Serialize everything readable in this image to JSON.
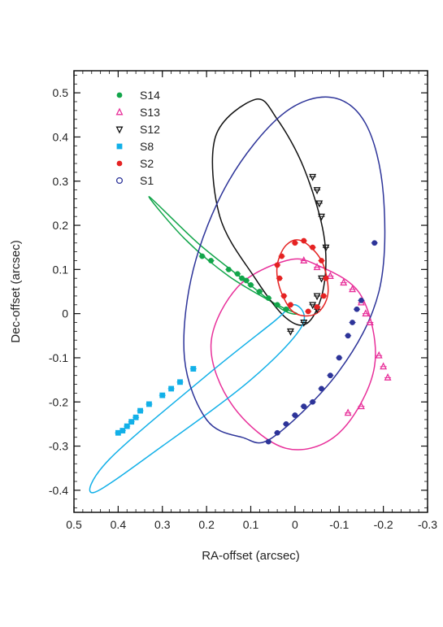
{
  "chart_data": {
    "type": "scatter",
    "title": "",
    "xlabel": "RA-offset (arcsec)",
    "ylabel": "Dec-offset (arcsec)",
    "xlim": [
      0.5,
      -0.3
    ],
    "ylim": [
      -0.45,
      0.55
    ],
    "x_ticks": [
      0.5,
      0.4,
      0.3,
      0.2,
      0.1,
      0,
      -0.1,
      -0.2,
      -0.3
    ],
    "x_tick_labels": [
      "0.5",
      "0.4",
      "0.3",
      "0.2",
      "0.1",
      "0",
      "-0.1",
      "-0.2",
      "-0.3"
    ],
    "y_ticks": [
      0.5,
      0.4,
      0.3,
      0.2,
      0.1,
      0,
      -0.1,
      -0.2,
      -0.3,
      -0.4
    ],
    "y_tick_labels": [
      "0.5",
      "0.4",
      "0.3",
      "0.2",
      "0.1",
      "0",
      "-0.1",
      "-0.2",
      "-0.3",
      "-0.4"
    ],
    "grid": false,
    "legend_position": "top-left",
    "series": [
      {
        "name": "S14",
        "color": "#12a54a",
        "marker": "circle",
        "points": [
          [
            0.21,
            0.13
          ],
          [
            0.19,
            0.12
          ],
          [
            0.15,
            0.1
          ],
          [
            0.13,
            0.09
          ],
          [
            0.12,
            0.08
          ],
          [
            0.11,
            0.075
          ],
          [
            0.1,
            0.065
          ],
          [
            0.08,
            0.05
          ],
          [
            0.06,
            0.035
          ],
          [
            0.04,
            0.02
          ],
          [
            0.02,
            0.01
          ]
        ],
        "orbit": [
          [
            0.33,
            0.265
          ],
          [
            0.25,
            0.17
          ],
          [
            0.15,
            0.085
          ],
          [
            0.04,
            0.02
          ],
          [
            -0.005,
            0.0
          ],
          [
            0.03,
            0.01
          ],
          [
            0.12,
            0.08
          ],
          [
            0.22,
            0.16
          ],
          [
            0.33,
            0.265
          ]
        ]
      },
      {
        "name": "S13",
        "color": "#e8309a",
        "marker": "triangle-up",
        "points": [
          [
            -0.02,
            0.12
          ],
          [
            -0.05,
            0.105
          ],
          [
            -0.08,
            0.085
          ],
          [
            -0.11,
            0.07
          ],
          [
            -0.13,
            0.055
          ],
          [
            -0.15,
            0.025
          ],
          [
            -0.16,
            0.0
          ],
          [
            -0.17,
            -0.02
          ],
          [
            -0.19,
            -0.095
          ],
          [
            -0.2,
            -0.12
          ],
          [
            -0.21,
            -0.145
          ],
          [
            -0.15,
            -0.21
          ],
          [
            -0.12,
            -0.225
          ]
        ],
        "orbit": [
          [
            0.02,
            0.12
          ],
          [
            0.13,
            0.06
          ],
          [
            0.19,
            -0.07
          ],
          [
            0.14,
            -0.21
          ],
          [
            0.02,
            -0.305
          ],
          [
            -0.1,
            -0.27
          ],
          [
            -0.18,
            -0.12
          ],
          [
            -0.15,
            0.04
          ],
          [
            -0.05,
            0.11
          ],
          [
            0.02,
            0.12
          ]
        ]
      },
      {
        "name": "S12",
        "color": "#111111",
        "marker": "triangle-down",
        "points": [
          [
            -0.04,
            0.31
          ],
          [
            -0.05,
            0.28
          ],
          [
            -0.055,
            0.25
          ],
          [
            -0.06,
            0.22
          ],
          [
            -0.07,
            0.15
          ],
          [
            -0.06,
            0.08
          ],
          [
            -0.05,
            0.04
          ],
          [
            -0.04,
            0.02
          ],
          [
            -0.05,
            0.01
          ],
          [
            0.01,
            -0.04
          ],
          [
            -0.02,
            -0.02
          ]
        ],
        "orbit": [
          [
            0.09,
            0.485
          ],
          [
            0.18,
            0.4
          ],
          [
            0.17,
            0.22
          ],
          [
            0.09,
            0.08
          ],
          [
            0.02,
            -0.01
          ],
          [
            -0.03,
            -0.02
          ],
          [
            -0.065,
            0.06
          ],
          [
            -0.065,
            0.18
          ],
          [
            -0.02,
            0.33
          ],
          [
            0.04,
            0.44
          ],
          [
            0.09,
            0.485
          ]
        ]
      },
      {
        "name": "S8",
        "color": "#12b0e8",
        "marker": "square",
        "points": [
          [
            0.23,
            -0.125
          ],
          [
            0.26,
            -0.155
          ],
          [
            0.28,
            -0.17
          ],
          [
            0.3,
            -0.185
          ],
          [
            0.33,
            -0.205
          ],
          [
            0.35,
            -0.22
          ],
          [
            0.36,
            -0.235
          ],
          [
            0.37,
            -0.245
          ],
          [
            0.38,
            -0.255
          ],
          [
            0.39,
            -0.265
          ],
          [
            0.4,
            -0.27
          ]
        ],
        "orbit": [
          [
            0.0,
            0.02
          ],
          [
            -0.015,
            -0.03
          ],
          [
            0.1,
            -0.15
          ],
          [
            0.3,
            -0.3
          ],
          [
            0.455,
            -0.405
          ],
          [
            0.42,
            -0.33
          ],
          [
            0.2,
            -0.14
          ],
          [
            0.05,
            -0.02
          ],
          [
            0.0,
            0.02
          ]
        ]
      },
      {
        "name": "S2",
        "color": "#e52222",
        "marker": "circle",
        "points": [
          [
            0.03,
            0.13
          ],
          [
            0.0,
            0.16
          ],
          [
            -0.02,
            0.165
          ],
          [
            -0.04,
            0.15
          ],
          [
            -0.06,
            0.12
          ],
          [
            -0.07,
            0.08
          ],
          [
            -0.065,
            0.04
          ],
          [
            -0.05,
            0.015
          ],
          [
            -0.03,
            0.005
          ],
          [
            0.01,
            0.02
          ],
          [
            0.025,
            0.04
          ],
          [
            0.035,
            0.08
          ],
          [
            0.04,
            0.11
          ]
        ],
        "orbit": [
          [
            -0.015,
            0.165
          ],
          [
            -0.06,
            0.12
          ],
          [
            -0.075,
            0.05
          ],
          [
            -0.055,
            0.005
          ],
          [
            -0.02,
            -0.005
          ],
          [
            0.01,
            0.01
          ],
          [
            0.035,
            0.06
          ],
          [
            0.04,
            0.11
          ],
          [
            0.02,
            0.155
          ],
          [
            -0.015,
            0.165
          ]
        ]
      },
      {
        "name": "S1",
        "color": "#2d3499",
        "marker": "circle-open",
        "points": [
          [
            -0.18,
            0.16
          ],
          [
            -0.15,
            0.03
          ],
          [
            -0.14,
            0.01
          ],
          [
            -0.13,
            -0.02
          ],
          [
            -0.12,
            -0.05
          ],
          [
            -0.1,
            -0.1
          ],
          [
            -0.08,
            -0.14
          ],
          [
            -0.06,
            -0.17
          ],
          [
            -0.04,
            -0.2
          ],
          [
            -0.02,
            -0.21
          ],
          [
            0.0,
            -0.23
          ],
          [
            0.02,
            -0.25
          ],
          [
            0.04,
            -0.27
          ],
          [
            0.06,
            -0.29
          ]
        ],
        "orbit": [
          [
            0.05,
            -0.28
          ],
          [
            -0.1,
            -0.13
          ],
          [
            -0.19,
            0.05
          ],
          [
            -0.2,
            0.27
          ],
          [
            -0.16,
            0.43
          ],
          [
            -0.08,
            0.49
          ],
          [
            0.03,
            0.45
          ],
          [
            0.15,
            0.3
          ],
          [
            0.23,
            0.1
          ],
          [
            0.25,
            -0.1
          ],
          [
            0.2,
            -0.24
          ],
          [
            0.12,
            -0.28
          ],
          [
            0.05,
            -0.28
          ]
        ]
      }
    ]
  }
}
